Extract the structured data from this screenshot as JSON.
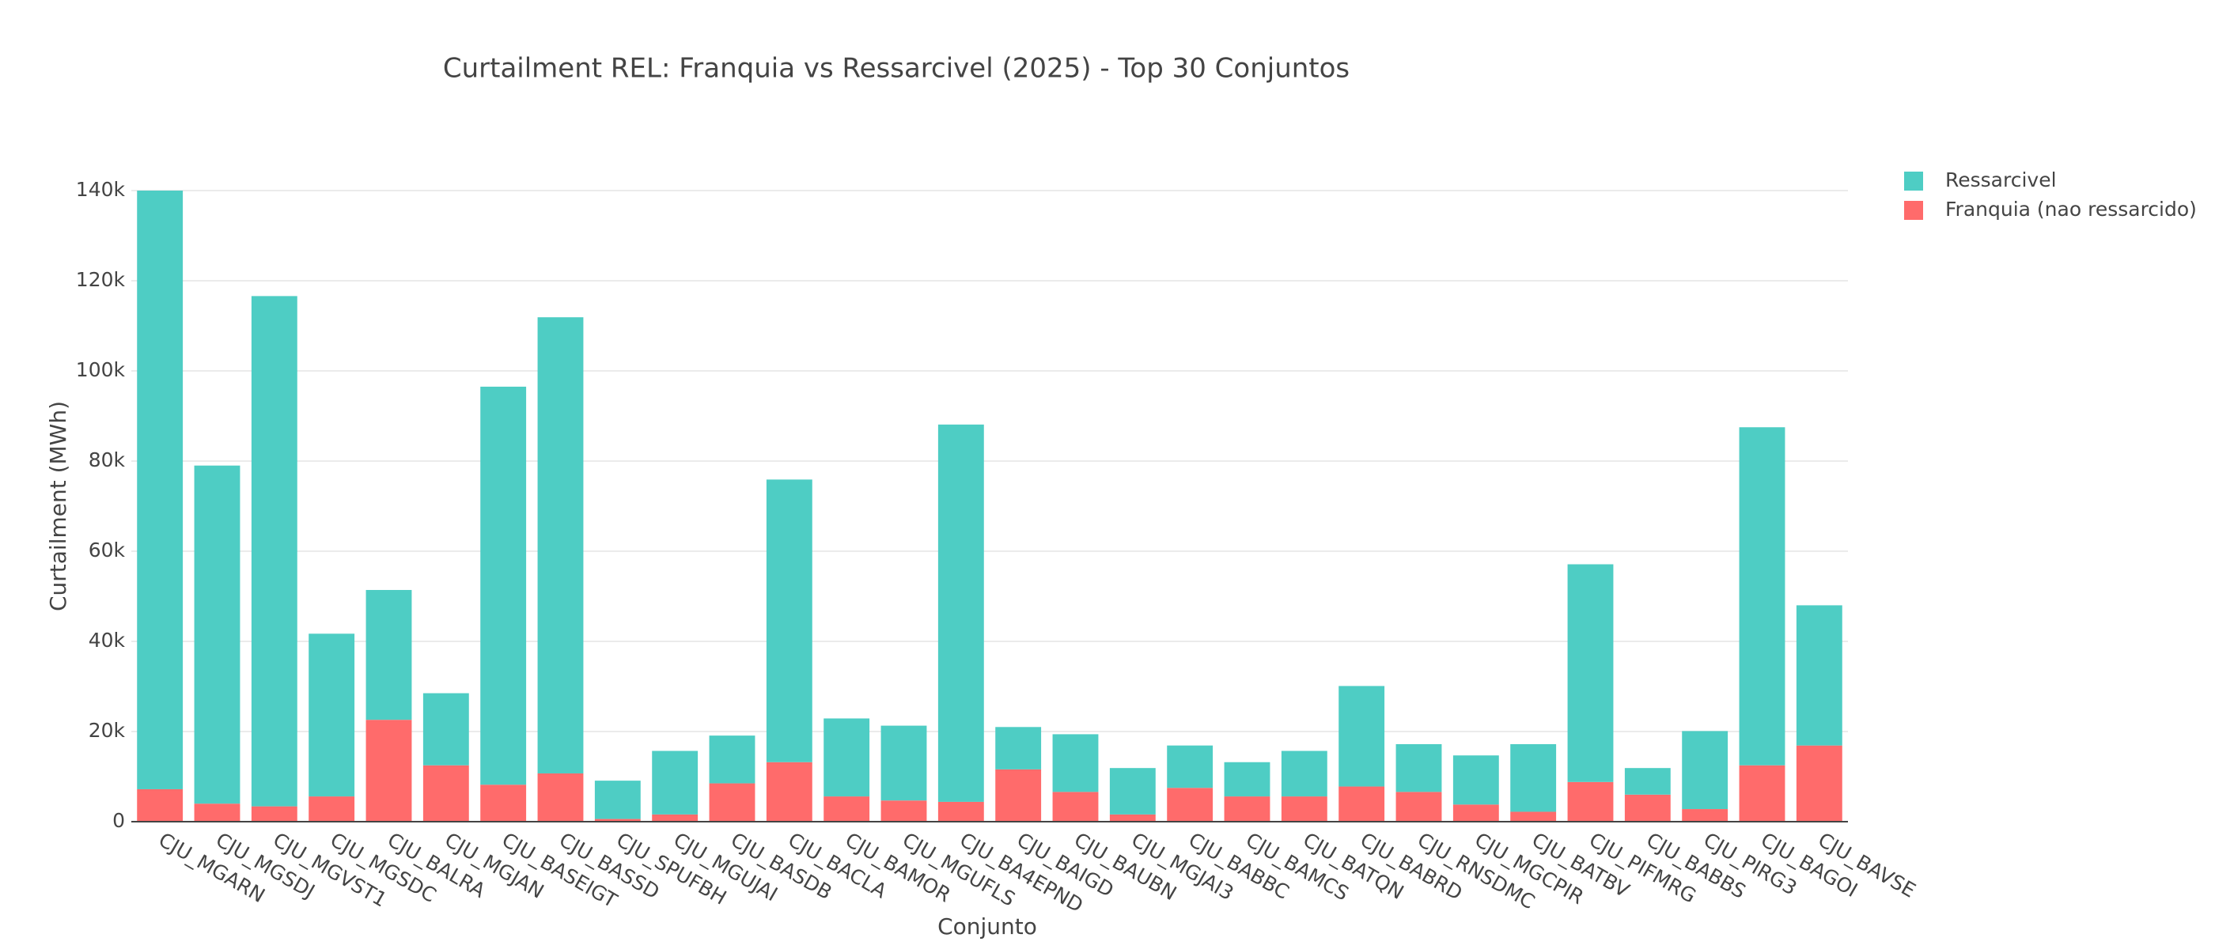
{
  "chart_data": {
    "type": "stacked-bar",
    "title": "Curtailment REL: Franquia vs Ressarcivel (2025) - Top 30 Conjuntos",
    "x_label": "Conjunto",
    "y_label": "Curtailment (MWh)",
    "categories": [
      "CJU_MGARN",
      "CJU_MGSDJ",
      "CJU_MGVST1",
      "CJU_MGSDC",
      "CJU_BALRA",
      "CJU_MGJAN",
      "CJU_BASEIGT",
      "CJU_BASSD",
      "CJU_SPUFBH",
      "CJU_MGUJAI",
      "CJU_BASDB",
      "CJU_BACLA",
      "CJU_BAMOR",
      "CJU_MGUFLS",
      "CJU_BA4EPND",
      "CJU_BAIGD",
      "CJU_BAUBN",
      "CJU_MGJAI3",
      "CJU_BABBC",
      "CJU_BAMCS",
      "CJU_BATQN",
      "CJU_BABRD",
      "CJU_RNSDMC",
      "CJU_MGCPIR",
      "CJU_BATBV",
      "CJU_PIFMRG",
      "CJU_BABBS",
      "CJU_PIRG3",
      "CJU_BAGOI",
      "CJU_BAVSE"
    ],
    "series": [
      {
        "name": "Franquia (nao ressarcido)",
        "color": "#ff6b6b",
        "values": [
          7200,
          4000,
          3400,
          5600,
          22600,
          12500,
          8200,
          10700,
          600,
          1600,
          8500,
          13200,
          5600,
          4700,
          4400,
          11600,
          6600,
          1600,
          7500,
          5600,
          5600,
          7800,
          6600,
          3800,
          2200,
          8800,
          6000,
          2800,
          12500,
          16900
        ]
      },
      {
        "name": "Ressarcivel",
        "color": "#4ecdc4",
        "values": [
          132800,
          75000,
          113200,
          36100,
          28800,
          16000,
          88300,
          101200,
          8500,
          14100,
          10600,
          62700,
          17300,
          16600,
          83700,
          9400,
          12800,
          10300,
          9400,
          7600,
          10100,
          22300,
          10600,
          10900,
          15000,
          48300,
          5900,
          17300,
          75000,
          31100
        ]
      }
    ],
    "ylim": [
      0,
      140000
    ],
    "yticks": [
      0,
      {
        "value": 20000,
        "label": "20k"
      },
      {
        "value": 40000,
        "label": "40k"
      },
      {
        "value": 60000,
        "label": "60k"
      },
      {
        "value": 80000,
        "label": "80k"
      },
      {
        "value": 100000,
        "label": "100k"
      },
      {
        "value": 120000,
        "label": "120k"
      },
      {
        "value": 140000,
        "label": "140k"
      }
    ],
    "grid": true,
    "legend": "right"
  }
}
